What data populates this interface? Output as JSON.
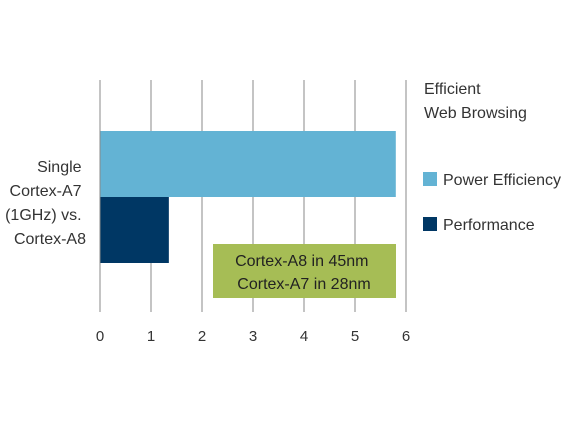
{
  "chart_data": {
    "type": "bar",
    "orientation": "horizontal",
    "title_lines": [
      "Efficient",
      "Web Browsing"
    ],
    "category_lines": [
      "Single",
      "Cortex-A7",
      "(1GHz) vs.",
      "Cortex-A8"
    ],
    "series": [
      {
        "name": "Power Efficiency",
        "value": 5.8,
        "color": "#63b3d4"
      },
      {
        "name": "Performance",
        "value": 1.35,
        "color": "#003764"
      }
    ],
    "xlim": [
      0,
      6
    ],
    "xticks": [
      "0",
      "1",
      "2",
      "3",
      "4",
      "5",
      "6"
    ],
    "grid": true,
    "legend_position": "right",
    "annotation": {
      "lines": [
        "Cortex-A8 in 45nm",
        "Cortex-A7 in 28nm"
      ],
      "color": "#a6bd55"
    }
  }
}
